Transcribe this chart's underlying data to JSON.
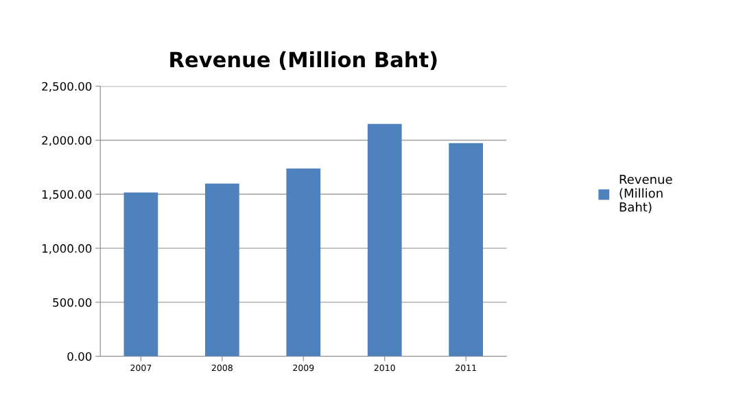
{
  "chart_data": {
    "type": "bar",
    "title": "Revenue (Million Baht)",
    "categories": [
      "2007",
      "2008",
      "2009",
      "2010",
      "2011"
    ],
    "series": [
      {
        "name": "Revenue (Million Baht)",
        "color": "#4f81bd",
        "values": [
          1516,
          1599,
          1739,
          2151,
          1973
        ]
      }
    ],
    "ylim": [
      0,
      2500
    ],
    "yticks": [
      {
        "value": 0,
        "label": "0.00"
      },
      {
        "value": 500,
        "label": "500.00"
      },
      {
        "value": 1000,
        "label": "1,000.00"
      },
      {
        "value": 1500,
        "label": "1,500.00"
      },
      {
        "value": 2000,
        "label": "2,000.00"
      },
      {
        "value": 2500,
        "label": "2,500.00"
      }
    ],
    "grid": "y",
    "legend": "right"
  }
}
